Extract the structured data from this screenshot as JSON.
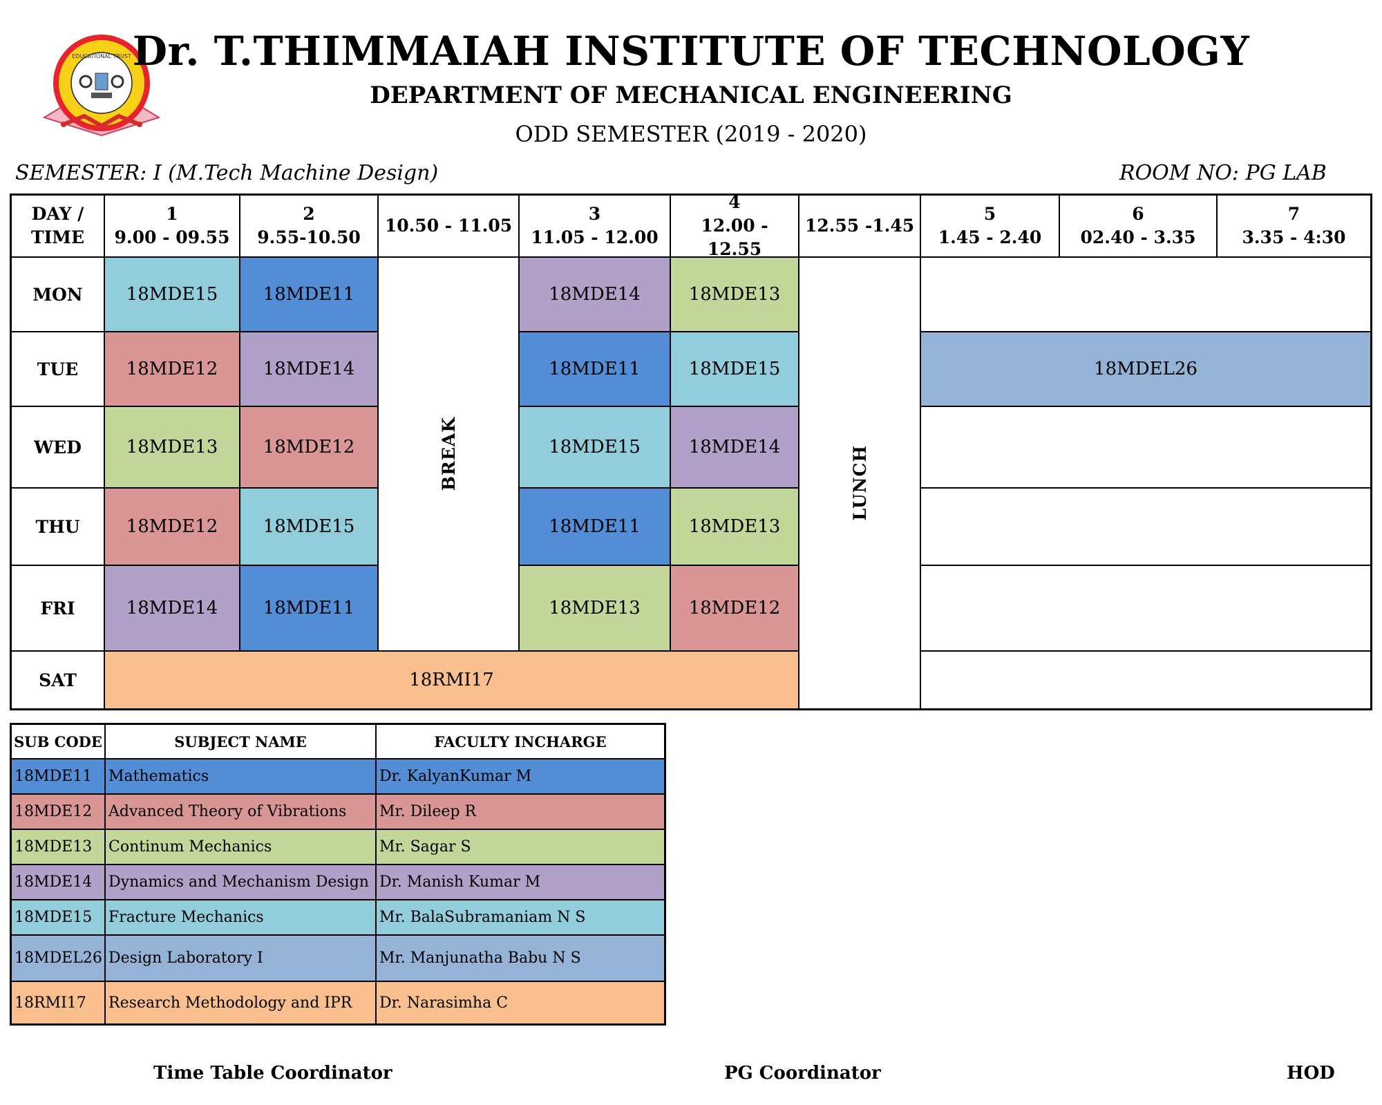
{
  "header": {
    "institute": "Dr. T.THIMMAIAH INSTITUTE OF TECHNOLOGY",
    "department": "DEPARTMENT OF MECHANICAL ENGINEERING",
    "semester_title": "ODD SEMESTER (2019 - 2020)",
    "semester_line": "SEMESTER: I  (M.Tech Machine Design)",
    "room_line": "ROOM NO: PG LAB",
    "logo_text": "Dr. T.THIMMAIAH INSTITUTE OF TECHNOLOGY"
  },
  "timetable": {
    "corner_top": "DAY  /",
    "corner_bottom": "TIME",
    "periods": [
      {
        "num": "1",
        "time": "9.00 - 09.55"
      },
      {
        "num": "2",
        "time": "9.55-10.50"
      },
      {
        "num": "",
        "time": "10.50  - 11.05"
      },
      {
        "num": "3",
        "time": "11.05 - 12.00"
      },
      {
        "num": "4",
        "time": "12.00 - 12.55"
      },
      {
        "num": "",
        "time": "12.55 -1.45"
      },
      {
        "num": "5",
        "time": "1.45 - 2.40"
      },
      {
        "num": "6",
        "time": "02.40 - 3.35"
      },
      {
        "num": "7",
        "time": "3.35 - 4:30"
      }
    ],
    "break_label": "BREAK",
    "lunch_label": "LUNCH",
    "days": [
      {
        "day": "MON",
        "p1": "18MDE15",
        "p2": "18MDE11",
        "p3": "18MDE14",
        "p4": "18MDE13",
        "afternoon": ""
      },
      {
        "day": "TUE",
        "p1": "18MDE12",
        "p2": "18MDE14",
        "p3": "18MDE11",
        "p4": "18MDE15",
        "afternoon": "18MDEL26"
      },
      {
        "day": "WED",
        "p1": "18MDE13",
        "p2": "18MDE12",
        "p3": "18MDE15",
        "p4": "18MDE14",
        "afternoon": ""
      },
      {
        "day": "THU",
        "p1": "18MDE12",
        "p2": "18MDE15",
        "p3": "18MDE11",
        "p4": "18MDE13",
        "afternoon": ""
      },
      {
        "day": "FRI",
        "p1": "18MDE14",
        "p2": "18MDE11",
        "p3": "18MDE13",
        "p4": "18MDE12",
        "afternoon": ""
      }
    ],
    "saturday": {
      "day": "SAT",
      "morning": "18RMI17",
      "afternoon": ""
    }
  },
  "legend": {
    "headers": [
      "SUB CODE",
      "SUBJECT NAME",
      "FACULTY INCHARGE"
    ],
    "rows": [
      {
        "code": "18MDE11",
        "name": "Mathematics",
        "faculty": "Dr. KalyanKumar M",
        "color": "#538dd5"
      },
      {
        "code": "18MDE12",
        "name": "Advanced Theory of Vibrations",
        "faculty": "Mr. Dileep R",
        "color": "#da9694"
      },
      {
        "code": "18MDE13",
        "name": "Continum Mechanics",
        "faculty": "Mr. Sagar S",
        "color": "#c4d79b"
      },
      {
        "code": "18MDE14",
        "name": "Dynamics and Mechanism Design",
        "faculty": "Dr. Manish Kumar M",
        "color": "#b1a0c7"
      },
      {
        "code": "18MDE15",
        "name": "Fracture Mechanics",
        "faculty": "Mr. BalaSubramaniam N S",
        "color": "#92cddc"
      },
      {
        "code": "18MDEL26",
        "name": "Design Laboratory I",
        "faculty": "Mr. Manjunatha Babu N S",
        "color": "#95b3d7"
      },
      {
        "code": "18RMI17",
        "name": "Research Methodology and IPR",
        "faculty": "Dr. Narasimha C",
        "color": "#fabf8f"
      }
    ]
  },
  "footer": {
    "sig1": "Time Table Coordinator",
    "sig2": "PG Coordinator",
    "sig3": "HOD"
  }
}
